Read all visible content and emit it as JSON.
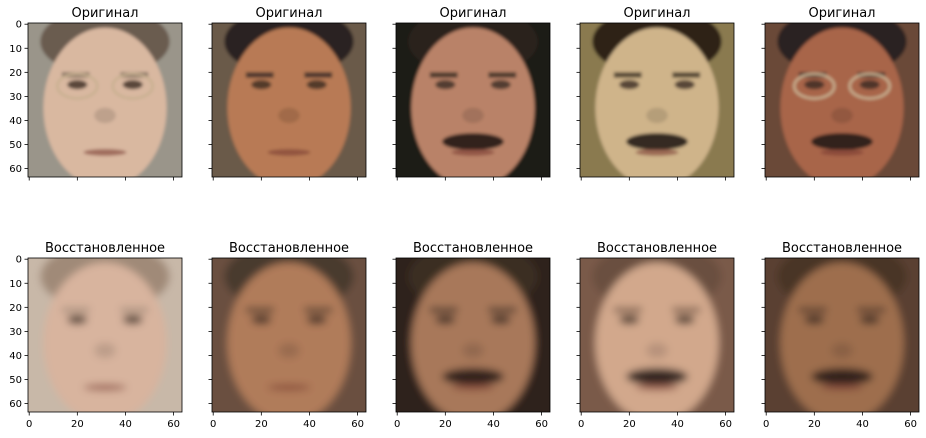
{
  "figure": {
    "rows": [
      {
        "title": "Оригинал",
        "panels": [
          {
            "face": "man with glasses, smiling",
            "skin": "#d9b8a0",
            "bg": "#9a958a",
            "hair": "#6a5c50",
            "glasses": true,
            "mustache": false
          },
          {
            "face": "asian man",
            "skin": "#b87a55",
            "bg": "#6a5a48",
            "hair": "#2a2320",
            "glasses": false,
            "mustache": false
          },
          {
            "face": "man with mustache",
            "skin": "#b98268",
            "bg": "#1f1c16",
            "hair": "#2a211c",
            "glasses": false,
            "mustache": true
          },
          {
            "face": "man with mustache, cap",
            "skin": "#cfb48a",
            "bg": "#8a7a50",
            "hair": "#2e2418",
            "glasses": false,
            "mustache": true
          },
          {
            "face": "man with glasses and mustache",
            "skin": "#a8654a",
            "bg": "#6a4a38",
            "hair": "#2c2320",
            "glasses": true,
            "mustache": true
          }
        ]
      },
      {
        "title": "Восстановленное",
        "panels": [
          {
            "face": "reconstructed blurry face",
            "skin": "#d8b49e",
            "bg": "#c8b8a8",
            "hair": "#a08a78",
            "glasses": false,
            "mustache": false
          },
          {
            "face": "reconstructed blurry face",
            "skin": "#b07c5a",
            "bg": "#6a5040",
            "hair": "#4a3a2e",
            "glasses": false,
            "mustache": false
          },
          {
            "face": "reconstructed blurry face",
            "skin": "#a8785a",
            "bg": "#2e241c",
            "hair": "#3a2e24",
            "glasses": false,
            "mustache": true
          },
          {
            "face": "reconstructed blurry face",
            "skin": "#d2a88c",
            "bg": "#7a5a48",
            "hair": "#6a5040",
            "glasses": false,
            "mustache": true
          },
          {
            "face": "reconstructed blurry face",
            "skin": "#9e6e4e",
            "bg": "#5a4030",
            "hair": "#4a3628",
            "glasses": false,
            "mustache": true
          }
        ]
      }
    ],
    "y_ticks": [
      "0",
      "10",
      "20",
      "30",
      "40",
      "50",
      "60"
    ],
    "x_ticks": [
      "0",
      "20",
      "40",
      "60"
    ],
    "axis_color": "#000000"
  }
}
